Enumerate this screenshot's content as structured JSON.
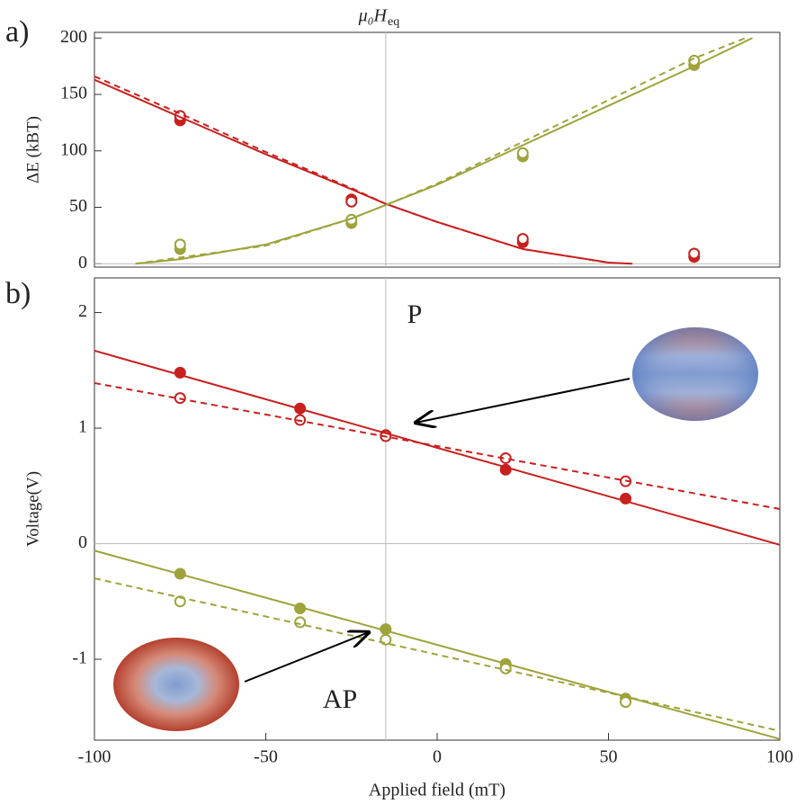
{
  "chart_data": [
    {
      "type": "scatter-line",
      "label": "a)",
      "ylabel": "ΔE (kBT)",
      "vline_label": "μ₀H",
      "vline_label_sub": "eq",
      "xlim": [
        -100,
        100
      ],
      "ylim": [
        -3,
        205
      ],
      "yticks": [
        0,
        50,
        100,
        150,
        200
      ],
      "vline": -15,
      "zero_line": true,
      "series": [
        {
          "style": "filled",
          "color": "#c8201e",
          "x": [
            -75,
            -25,
            25,
            75
          ],
          "values": [
            127,
            57,
            19,
            6
          ]
        },
        {
          "style": "open",
          "color": "#c8201e",
          "x": [
            -75,
            -25,
            25,
            75
          ],
          "values": [
            131,
            55,
            22,
            9
          ]
        },
        {
          "style": "filled",
          "color": "#9ea33b",
          "x": [
            -75,
            -25,
            25,
            75
          ],
          "values": [
            13,
            36,
            95,
            176
          ]
        },
        {
          "style": "open",
          "color": "#9ea33b",
          "x": [
            -75,
            -25,
            25,
            75
          ],
          "values": [
            17,
            39,
            98,
            180
          ]
        },
        {
          "style": "solid",
          "color": "#c8201e",
          "x": [
            -100,
            -75,
            -50,
            -25,
            -15,
            0,
            25,
            50,
            57
          ],
          "values": [
            163,
            130,
            97,
            66,
            53,
            37,
            13,
            1,
            0
          ]
        },
        {
          "style": "dashed",
          "color": "#c8201e",
          "x": [
            -100,
            -75,
            -50,
            -25,
            -15,
            0,
            25,
            50
          ],
          "values": [
            166,
            133,
            99,
            67,
            53,
            37,
            13,
            1
          ]
        },
        {
          "style": "solid",
          "color": "#9ea33b",
          "x": [
            -88,
            -75,
            -50,
            -25,
            -15,
            0,
            25,
            50,
            75,
            92
          ],
          "values": [
            0,
            4,
            17,
            40,
            52,
            70,
            105,
            140,
            175,
            200
          ]
        },
        {
          "style": "dashed",
          "color": "#9ea33b",
          "x": [
            -88,
            -50,
            -25,
            -15,
            0,
            25,
            50,
            75,
            90
          ],
          "values": [
            0,
            16,
            40,
            52,
            71,
            108,
            145,
            182,
            200
          ]
        }
      ]
    },
    {
      "type": "scatter-line",
      "label": "b)",
      "ylabel": "Voltage(V)",
      "xlabel": "Applied field (mT)",
      "annotations": [
        "P",
        "AP"
      ],
      "xlim": [
        -100,
        100
      ],
      "ylim": [
        -1.7,
        2.3
      ],
      "xticks": [
        -100,
        -50,
        0,
        50,
        100
      ],
      "yticks": [
        -1,
        0,
        1,
        2
      ],
      "vline": -15,
      "zero_line": true,
      "series": [
        {
          "style": "filled",
          "color": "#c8201e",
          "x": [
            -75,
            -40,
            -15,
            20,
            55
          ],
          "values": [
            1.48,
            1.17,
            0.94,
            0.64,
            0.39
          ]
        },
        {
          "style": "open",
          "color": "#c8201e",
          "x": [
            -75,
            -40,
            -15,
            20,
            55
          ],
          "values": [
            1.26,
            1.07,
            0.93,
            0.74,
            0.54
          ]
        },
        {
          "style": "solid",
          "color": "#c8201e",
          "x": [
            -100,
            100
          ],
          "values": [
            1.67,
            -0.01
          ]
        },
        {
          "style": "dashed",
          "color": "#c8201e",
          "x": [
            -100,
            100
          ],
          "values": [
            1.39,
            0.3
          ]
        },
        {
          "style": "filled",
          "color": "#9ea33b",
          "x": [
            -75,
            -40,
            -15,
            20,
            55
          ],
          "values": [
            -0.26,
            -0.56,
            -0.74,
            -1.04,
            -1.34
          ]
        },
        {
          "style": "open",
          "color": "#9ea33b",
          "x": [
            -75,
            -40,
            -15,
            20,
            55
          ],
          "values": [
            -0.5,
            -0.68,
            -0.83,
            -1.08,
            -1.37
          ]
        },
        {
          "style": "solid",
          "color": "#9ea33b",
          "x": [
            -100,
            100
          ],
          "values": [
            -0.06,
            -1.69
          ]
        },
        {
          "style": "dashed",
          "color": "#9ea33b",
          "x": [
            -100,
            100
          ],
          "values": [
            -0.3,
            -1.62
          ]
        }
      ]
    }
  ]
}
